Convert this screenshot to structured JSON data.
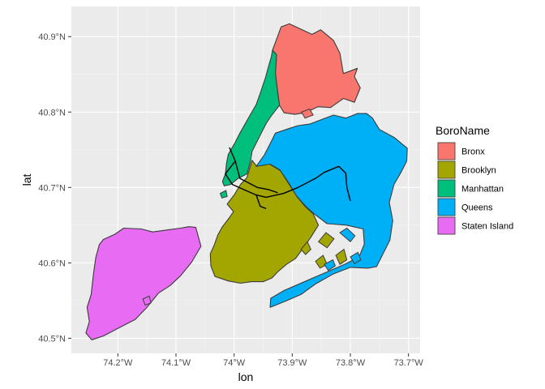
{
  "chart_data": {
    "type": "map",
    "xlabel": "lon",
    "ylabel": "lat",
    "xlim": [
      -74.28,
      -73.68
    ],
    "ylim": [
      40.48,
      40.94
    ],
    "x_ticks": [
      {
        "value": -74.2,
        "label": "74.2°W"
      },
      {
        "value": -74.1,
        "label": "74.1°W"
      },
      {
        "value": -74.0,
        "label": "74°W"
      },
      {
        "value": -73.9,
        "label": "73.9°W"
      },
      {
        "value": -73.8,
        "label": "73.8°W"
      },
      {
        "value": -73.7,
        "label": "73.7°W"
      }
    ],
    "y_ticks": [
      {
        "value": 40.5,
        "label": "40.5°N"
      },
      {
        "value": 40.6,
        "label": "40.6°N"
      },
      {
        "value": 40.7,
        "label": "40.7°N"
      },
      {
        "value": 40.8,
        "label": "40.8°N"
      },
      {
        "value": 40.9,
        "label": "40.9°N"
      }
    ],
    "grid": true,
    "legend": {
      "title": "BoroName",
      "position": "right",
      "entries": [
        {
          "name": "Bronx",
          "color": "#F8766D"
        },
        {
          "name": "Brooklyn",
          "color": "#A3A500"
        },
        {
          "name": "Manhattan",
          "color": "#00BF7D"
        },
        {
          "name": "Queens",
          "color": "#00B0F6"
        },
        {
          "name": "Staten Island",
          "color": "#E76BF3"
        }
      ]
    },
    "regions": [
      {
        "name": "Bronx",
        "color": "#F8766D",
        "coords": [
          [
            -73.934,
            40.882
          ],
          [
            -73.919,
            40.913
          ],
          [
            -73.905,
            40.917
          ],
          [
            -73.866,
            40.903
          ],
          [
            -73.851,
            40.909
          ],
          [
            -73.829,
            40.895
          ],
          [
            -73.818,
            40.878
          ],
          [
            -73.812,
            40.851
          ],
          [
            -73.788,
            40.858
          ],
          [
            -73.793,
            40.847
          ],
          [
            -73.783,
            40.832
          ],
          [
            -73.793,
            40.813
          ],
          [
            -73.812,
            40.818
          ],
          [
            -73.834,
            40.806
          ],
          [
            -73.856,
            40.807
          ],
          [
            -73.878,
            40.799
          ],
          [
            -73.896,
            40.797
          ],
          [
            -73.914,
            40.799
          ],
          [
            -73.922,
            40.809
          ],
          [
            -73.925,
            40.826
          ],
          [
            -73.929,
            40.851
          ],
          [
            -73.933,
            40.866
          ]
        ]
      },
      {
        "name": "Manhattan",
        "color": "#00BF7D",
        "coords": [
          [
            -73.934,
            40.882
          ],
          [
            -73.927,
            40.876
          ],
          [
            -73.929,
            40.851
          ],
          [
            -73.925,
            40.826
          ],
          [
            -73.922,
            40.809
          ],
          [
            -73.936,
            40.795
          ],
          [
            -73.944,
            40.786
          ],
          [
            -73.956,
            40.768
          ],
          [
            -73.969,
            40.748
          ],
          [
            -73.972,
            40.734
          ],
          [
            -73.978,
            40.718
          ],
          [
            -73.993,
            40.712
          ],
          [
            -74.006,
            40.704
          ],
          [
            -74.017,
            40.702
          ],
          [
            -74.02,
            40.708
          ],
          [
            -74.015,
            40.718
          ],
          [
            -74.013,
            40.732
          ],
          [
            -74.01,
            40.744
          ],
          [
            -73.998,
            40.76
          ],
          [
            -73.99,
            40.772
          ],
          [
            -73.977,
            40.79
          ],
          [
            -73.962,
            40.81
          ],
          [
            -73.955,
            40.825
          ],
          [
            -73.946,
            40.846
          ],
          [
            -73.941,
            40.86
          ],
          [
            -73.936,
            40.873
          ]
        ]
      },
      {
        "name": "Brooklyn",
        "color": "#A3A500",
        "coords": [
          [
            -73.969,
            40.736
          ],
          [
            -73.962,
            40.729
          ],
          [
            -73.953,
            40.731
          ],
          [
            -73.946,
            40.738
          ],
          [
            -73.937,
            40.73
          ],
          [
            -73.92,
            40.722
          ],
          [
            -73.906,
            40.705
          ],
          [
            -73.892,
            40.688
          ],
          [
            -73.878,
            40.675
          ],
          [
            -73.864,
            40.665
          ],
          [
            -73.855,
            40.65
          ],
          [
            -73.868,
            40.634
          ],
          [
            -73.88,
            40.621
          ],
          [
            -73.894,
            40.606
          ],
          [
            -73.91,
            40.598
          ],
          [
            -73.925,
            40.588
          ],
          [
            -73.935,
            40.58
          ],
          [
            -73.95,
            40.575
          ],
          [
            -73.97,
            40.575
          ],
          [
            -73.989,
            40.573
          ],
          [
            -74.01,
            40.576
          ],
          [
            -74.033,
            40.582
          ],
          [
            -74.04,
            40.596
          ],
          [
            -74.041,
            40.612
          ],
          [
            -74.034,
            40.624
          ],
          [
            -74.028,
            40.637
          ],
          [
            -74.02,
            40.648
          ],
          [
            -74.008,
            40.66
          ],
          [
            -74.001,
            40.668
          ],
          [
            -74.012,
            40.678
          ],
          [
            -74.0,
            40.69
          ],
          [
            -73.989,
            40.704
          ],
          [
            -73.978,
            40.713
          ]
        ]
      },
      {
        "name": "Queens",
        "color": "#00B0F6",
        "coords": [
          [
            -73.962,
            40.728
          ],
          [
            -73.948,
            40.743
          ],
          [
            -73.94,
            40.755
          ],
          [
            -73.929,
            40.772
          ],
          [
            -73.906,
            40.778
          ],
          [
            -73.89,
            40.782
          ],
          [
            -73.87,
            40.784
          ],
          [
            -73.85,
            40.79
          ],
          [
            -73.829,
            40.796
          ],
          [
            -73.808,
            40.792
          ],
          [
            -73.788,
            40.798
          ],
          [
            -73.772,
            40.798
          ],
          [
            -73.762,
            40.792
          ],
          [
            -73.75,
            40.777
          ],
          [
            -73.724,
            40.766
          ],
          [
            -73.702,
            40.752
          ],
          [
            -73.703,
            40.735
          ],
          [
            -73.713,
            40.72
          ],
          [
            -73.725,
            40.704
          ],
          [
            -73.733,
            40.68
          ],
          [
            -73.727,
            40.656
          ],
          [
            -73.732,
            40.63
          ],
          [
            -73.755,
            40.595
          ],
          [
            -73.77,
            40.593
          ],
          [
            -73.8,
            40.594
          ],
          [
            -73.83,
            40.585
          ],
          [
            -73.86,
            40.572
          ],
          [
            -73.885,
            40.558
          ],
          [
            -73.912,
            40.549
          ],
          [
            -73.938,
            40.541
          ],
          [
            -73.937,
            40.553
          ],
          [
            -73.915,
            40.563
          ],
          [
            -73.87,
            40.578
          ],
          [
            -73.84,
            40.588
          ],
          [
            -73.81,
            40.598
          ],
          [
            -73.785,
            40.608
          ],
          [
            -73.776,
            40.625
          ],
          [
            -73.778,
            40.645
          ],
          [
            -73.807,
            40.65
          ],
          [
            -73.84,
            40.652
          ],
          [
            -73.864,
            40.666
          ],
          [
            -73.878,
            40.676
          ],
          [
            -73.893,
            40.689
          ],
          [
            -73.906,
            40.706
          ],
          [
            -73.921,
            40.723
          ],
          [
            -73.938,
            40.731
          ]
        ]
      },
      {
        "name": "Staten Island",
        "color": "#E76BF3",
        "coords": [
          [
            -74.066,
            40.647
          ],
          [
            -74.078,
            40.648
          ],
          [
            -74.092,
            40.646
          ],
          [
            -74.112,
            40.644
          ],
          [
            -74.14,
            40.641
          ],
          [
            -74.16,
            40.645
          ],
          [
            -74.19,
            40.646
          ],
          [
            -74.205,
            40.638
          ],
          [
            -74.225,
            40.631
          ],
          [
            -74.232,
            40.624
          ],
          [
            -74.238,
            40.607
          ],
          [
            -74.242,
            40.585
          ],
          [
            -74.246,
            40.558
          ],
          [
            -74.253,
            40.541
          ],
          [
            -74.249,
            40.522
          ],
          [
            -74.255,
            40.507
          ],
          [
            -74.245,
            40.498
          ],
          [
            -74.225,
            40.503
          ],
          [
            -74.2,
            40.513
          ],
          [
            -74.17,
            40.525
          ],
          [
            -74.15,
            40.541
          ],
          [
            -74.13,
            40.56
          ],
          [
            -74.11,
            40.57
          ],
          [
            -74.092,
            40.583
          ],
          [
            -74.073,
            40.601
          ],
          [
            -74.057,
            40.622
          ]
        ]
      }
    ],
    "islands": [
      {
        "name": "Brooklyn",
        "color": "#A3A500",
        "coords": [
          [
            -73.855,
            40.628
          ],
          [
            -73.842,
            40.64
          ],
          [
            -73.828,
            40.632
          ],
          [
            -73.84,
            40.62
          ]
        ]
      },
      {
        "name": "Brooklyn",
        "color": "#A3A500",
        "coords": [
          [
            -73.86,
            40.602
          ],
          [
            -73.847,
            40.61
          ],
          [
            -73.84,
            40.598
          ],
          [
            -73.852,
            40.593
          ]
        ]
      },
      {
        "name": "Brooklyn",
        "color": "#A3A500",
        "coords": [
          [
            -73.825,
            40.61
          ],
          [
            -73.811,
            40.618
          ],
          [
            -73.806,
            40.604
          ],
          [
            -73.818,
            40.598
          ]
        ]
      },
      {
        "name": "Brooklyn",
        "color": "#A3A500",
        "coords": [
          [
            -73.885,
            40.618
          ],
          [
            -73.874,
            40.628
          ],
          [
            -73.868,
            40.618
          ],
          [
            -73.877,
            40.611
          ]
        ]
      },
      {
        "name": "Queens",
        "color": "#00B0F6",
        "coords": [
          [
            -73.818,
            40.64
          ],
          [
            -73.8,
            40.628
          ],
          [
            -73.792,
            40.636
          ],
          [
            -73.806,
            40.646
          ]
        ]
      },
      {
        "name": "Queens",
        "color": "#00B0F6",
        "coords": [
          [
            -73.8,
            40.608
          ],
          [
            -73.787,
            40.614
          ],
          [
            -73.782,
            40.604
          ],
          [
            -73.793,
            40.599
          ]
        ]
      },
      {
        "name": "Queens",
        "color": "#00B0F6",
        "coords": [
          [
            -73.845,
            40.598
          ],
          [
            -73.83,
            40.604
          ],
          [
            -73.826,
            40.596
          ],
          [
            -73.838,
            40.59
          ]
        ]
      },
      {
        "name": "Bronx",
        "color": "#F8766D",
        "coords": [
          [
            -73.884,
            40.8
          ],
          [
            -73.87,
            40.804
          ],
          [
            -73.864,
            40.796
          ],
          [
            -73.878,
            40.792
          ]
        ]
      },
      {
        "name": "Manhattan",
        "color": "#00BF7D",
        "coords": [
          [
            -74.024,
            40.692
          ],
          [
            -74.014,
            40.696
          ],
          [
            -74.012,
            40.688
          ],
          [
            -74.021,
            40.686
          ]
        ]
      },
      {
        "name": "Staten Island",
        "color": "#E76BF3",
        "coords": [
          [
            -74.157,
            40.552
          ],
          [
            -74.146,
            40.556
          ],
          [
            -74.143,
            40.547
          ],
          [
            -74.153,
            40.544
          ]
        ]
      }
    ],
    "lines": [
      [
        [
          -74.008,
          40.753
        ],
        [
          -73.998,
          40.735
        ],
        [
          -74.015,
          40.718
        ],
        [
          -74.003,
          40.704
        ],
        [
          -73.98,
          40.696
        ],
        [
          -73.962,
          40.69
        ],
        [
          -73.945,
          40.687
        ],
        [
          -73.915,
          40.692
        ],
        [
          -73.89,
          40.7
        ],
        [
          -73.86,
          40.712
        ],
        [
          -73.845,
          40.72
        ],
        [
          -73.82,
          40.728
        ],
        [
          -73.808,
          40.719
        ],
        [
          -73.806,
          40.7
        ],
        [
          -73.8,
          40.682
        ]
      ],
      [
        [
          -73.998,
          40.735
        ],
        [
          -73.99,
          40.712
        ],
        [
          -73.96,
          40.7
        ],
        [
          -73.94,
          40.697
        ],
        [
          -73.925,
          40.693
        ]
      ],
      [
        [
          -73.962,
          40.69
        ],
        [
          -73.955,
          40.675
        ],
        [
          -73.945,
          40.672
        ]
      ]
    ]
  }
}
